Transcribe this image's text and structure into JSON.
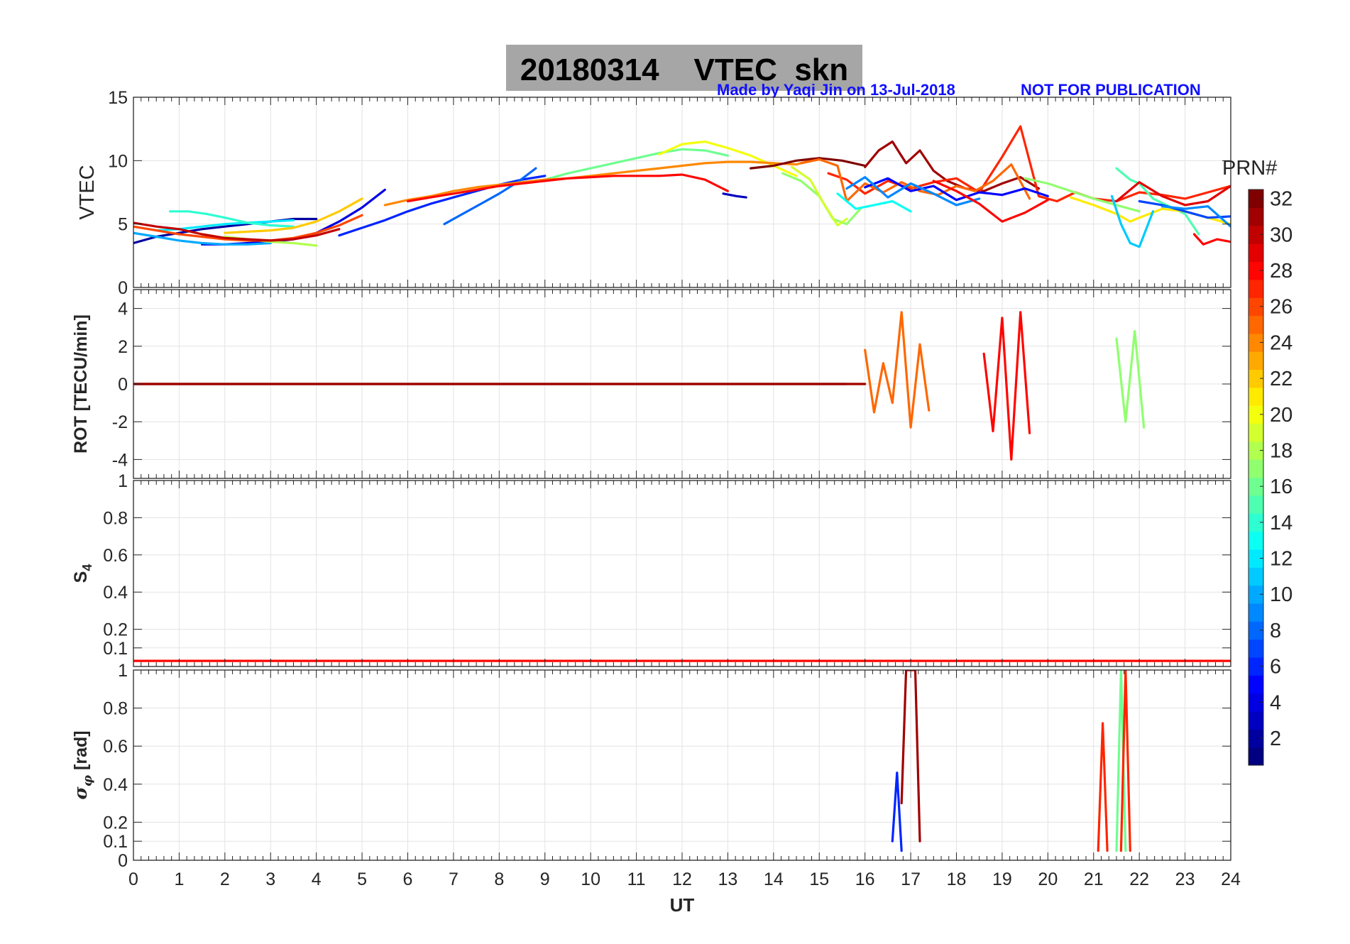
{
  "title": "20180314    VTEC  skn",
  "credit_author": "Made by Yaqi Jin on 13-Jul-2018",
  "credit_note": "NOT FOR PUBLICATION",
  "chart_data": [
    {
      "type": "line",
      "panel": "vtec",
      "ylabel": "VTEC",
      "ylim": [
        0,
        15
      ],
      "yticks": [
        "0",
        "5",
        "10",
        "15"
      ],
      "xlim": [
        0,
        24
      ],
      "grid": true,
      "series": [
        {
          "prn": 2,
          "x": [
            0,
            0.5,
            1,
            1.5,
            2,
            2.5,
            3,
            3.5,
            4
          ],
          "y": [
            3.5,
            4.0,
            4.3,
            4.6,
            4.8,
            5.0,
            5.2,
            5.4,
            5.4
          ]
        },
        {
          "prn": 4,
          "x": [
            1.5,
            2,
            2.5,
            3,
            3.5,
            4,
            4.5,
            5,
            5.5
          ],
          "y": [
            3.4,
            3.4,
            3.5,
            3.6,
            3.8,
            4.3,
            5.2,
            6.3,
            7.7
          ]
        },
        {
          "prn": 6,
          "x": [
            4.5,
            5,
            5.5,
            6,
            6.5,
            7,
            7.5,
            8,
            8.5,
            9
          ],
          "y": [
            4.1,
            4.7,
            5.3,
            6.0,
            6.6,
            7.1,
            7.6,
            8.1,
            8.5,
            8.8
          ]
        },
        {
          "prn": 8,
          "x": [
            6.8,
            7.2,
            7.6,
            8,
            8.4,
            8.8
          ],
          "y": [
            5.0,
            5.8,
            6.6,
            7.4,
            8.3,
            9.4
          ]
        },
        {
          "prn": 10,
          "x": [
            0,
            0.5,
            1,
            1.5,
            2,
            2.5,
            3
          ],
          "y": [
            4.3,
            4.0,
            3.7,
            3.5,
            3.4,
            3.4,
            3.5
          ]
        },
        {
          "prn": 12,
          "x": [
            0.5,
            1,
            1.5,
            2,
            2.5,
            3,
            3.5
          ],
          "y": [
            4.5,
            4.6,
            4.8,
            5.0,
            5.1,
            5.2,
            5.3
          ]
        },
        {
          "prn": 14,
          "x": [
            0.8,
            1.2,
            1.6,
            2,
            2.5,
            3,
            3.5
          ],
          "y": [
            6.0,
            6.0,
            5.8,
            5.5,
            5.1,
            4.9,
            4.8
          ]
        },
        {
          "prn": 16,
          "x": [
            9,
            9.5,
            10,
            10.5,
            11,
            11.5,
            12,
            12.5,
            13
          ],
          "y": [
            8.5,
            9.0,
            9.4,
            9.8,
            10.2,
            10.6,
            10.9,
            10.8,
            10.4
          ]
        },
        {
          "prn": 18,
          "x": [
            2,
            2.5,
            3,
            3.5,
            4
          ],
          "y": [
            4.0,
            3.8,
            3.6,
            3.5,
            3.3
          ]
        },
        {
          "prn": 20,
          "x": [
            11.5,
            12,
            12.5,
            13,
            13.5,
            14,
            14.5
          ],
          "y": [
            10.5,
            11.3,
            11.5,
            11.0,
            10.4,
            9.6,
            8.8
          ]
        },
        {
          "prn": 22,
          "x": [
            2,
            2.5,
            3,
            3.5,
            4,
            4.5,
            5
          ],
          "y": [
            4.3,
            4.4,
            4.5,
            4.7,
            5.2,
            6.0,
            7.0
          ]
        },
        {
          "prn": 24,
          "x": [
            5.5,
            6,
            6.5,
            7,
            7.5,
            8,
            8.5,
            9,
            9.5,
            10,
            10.5,
            11,
            11.5,
            12,
            12.5,
            13,
            13.5,
            14,
            14.5,
            15
          ],
          "y": [
            6.5,
            6.9,
            7.2,
            7.6,
            7.9,
            8.1,
            8.3,
            8.5,
            8.6,
            8.8,
            9.0,
            9.2,
            9.4,
            9.6,
            9.8,
            9.9,
            9.9,
            9.8,
            9.7,
            10.2
          ]
        },
        {
          "prn": 26,
          "x": [
            0,
            0.5,
            1,
            1.5,
            2,
            2.5,
            3,
            3.5,
            4,
            4.5,
            5
          ],
          "y": [
            4.8,
            4.5,
            4.2,
            4.0,
            3.8,
            3.7,
            3.7,
            3.9,
            4.3,
            4.9,
            5.7
          ]
        },
        {
          "prn": 28,
          "x": [
            6,
            6.5,
            7,
            7.5,
            8,
            8.5,
            9,
            9.5,
            10,
            10.5,
            11,
            11.5,
            12,
            12.5,
            13
          ],
          "y": [
            6.8,
            7.1,
            7.4,
            7.7,
            8.0,
            8.2,
            8.4,
            8.6,
            8.7,
            8.8,
            8.8,
            8.8,
            8.9,
            8.5,
            7.6
          ]
        },
        {
          "prn": 30,
          "x": [
            0,
            0.5,
            1,
            1.5,
            2,
            2.5,
            3,
            3.5,
            4,
            4.5
          ],
          "y": [
            5.1,
            4.8,
            4.6,
            4.2,
            3.9,
            3.8,
            3.7,
            3.8,
            4.1,
            4.6
          ]
        },
        {
          "prn": 32,
          "x": [
            13.5,
            14,
            14.5,
            15,
            15.5,
            16
          ],
          "y": [
            9.4,
            9.6,
            10.0,
            10.2,
            10.0,
            9.6
          ]
        },
        {
          "prn": 31,
          "x": [
            16,
            16.3,
            16.6,
            16.9,
            17.2,
            17.5,
            17.8,
            18.2,
            18.6,
            19,
            19.4,
            19.8
          ],
          "y": [
            9.5,
            10.8,
            11.5,
            9.8,
            10.8,
            9.2,
            8.4,
            7.8,
            7.6,
            8.2,
            8.7,
            7.8
          ]
        },
        {
          "prn": 27,
          "x": [
            15.2,
            15.6,
            16,
            16.5,
            17,
            17.5,
            18,
            18.5,
            19,
            19.4,
            19.8,
            20.2,
            20.6,
            21,
            21.5,
            22,
            22.5,
            23,
            23.5,
            24
          ],
          "y": [
            9.0,
            8.5,
            7.4,
            8.4,
            7.8,
            8.3,
            8.6,
            7.5,
            10.3,
            12.7,
            7.2,
            6.8,
            7.5,
            7.0,
            6.8,
            7.5,
            7.3,
            7.0,
            7.5,
            8.0
          ]
        },
        {
          "prn": 25,
          "x": [
            14.6,
            15,
            15.4,
            15.6,
            16,
            16.4,
            16.8,
            17.2,
            17.6,
            18,
            18.4,
            18.8,
            19.2,
            19.6
          ],
          "y": [
            9.8,
            10.1,
            9.6,
            6.8,
            8.2,
            7.5,
            8.3,
            7.6,
            7.3,
            8.0,
            7.6,
            8.4,
            9.7,
            7.0
          ]
        },
        {
          "prn": 17,
          "x": [
            14.2,
            14.6,
            15,
            15.3,
            15.6,
            15.9
          ],
          "y": [
            9.0,
            8.4,
            7.2,
            5.4,
            5.0,
            6.2
          ]
        },
        {
          "prn": 19,
          "x": [
            14.4,
            14.8,
            15.1,
            15.4,
            15.6
          ],
          "y": [
            9.5,
            8.5,
            6.6,
            4.9,
            5.4
          ]
        },
        {
          "prn": 13,
          "x": [
            15.4,
            15.8,
            16.2,
            16.6,
            17
          ],
          "y": [
            7.4,
            6.2,
            6.5,
            6.8,
            6.0
          ]
        },
        {
          "prn": 5,
          "x": [
            16,
            16.5,
            17,
            17.5,
            18,
            18.5,
            19,
            19.5,
            20
          ],
          "y": [
            7.9,
            8.6,
            7.6,
            8.0,
            6.9,
            7.5,
            7.3,
            7.8,
            7.2
          ]
        },
        {
          "prn": 9,
          "x": [
            15.6,
            16,
            16.5,
            17,
            17.5,
            18,
            18.5
          ],
          "y": [
            7.8,
            8.7,
            7.1,
            8.2,
            7.4,
            6.5,
            7.0
          ]
        },
        {
          "prn": 17,
          "x": [
            19.5,
            20,
            20.5,
            21,
            21.5,
            22
          ],
          "y": [
            8.6,
            8.2,
            7.6,
            7.0,
            6.5,
            6.0
          ]
        },
        {
          "prn": 15,
          "x": [
            21.5,
            21.8,
            22,
            22.3,
            22.6,
            23,
            23.3
          ],
          "y": [
            9.4,
            8.5,
            8.2,
            7.0,
            6.5,
            5.8,
            4.2
          ]
        },
        {
          "prn": 21,
          "x": [
            20.5,
            21,
            21.5,
            21.8,
            22,
            22.5,
            23,
            23.5,
            24
          ],
          "y": [
            7.1,
            6.5,
            5.8,
            5.2,
            5.5,
            6.2,
            6.0,
            5.5,
            5.0
          ]
        },
        {
          "prn": 11,
          "x": [
            21.4,
            21.6,
            21.8,
            22,
            22.3
          ],
          "y": [
            7.2,
            5.0,
            3.5,
            3.2,
            6.0
          ]
        },
        {
          "prn": 7,
          "x": [
            22,
            22.5,
            23,
            23.5,
            24
          ],
          "y": [
            6.8,
            6.5,
            6.0,
            5.5,
            5.6
          ]
        },
        {
          "prn": 9,
          "x": [
            22.5,
            23,
            23.5,
            24
          ],
          "y": [
            6.4,
            6.2,
            6.4,
            4.8
          ]
        },
        {
          "prn": 29,
          "x": [
            21.5,
            22,
            22.5,
            23,
            23.5,
            24
          ],
          "y": [
            6.8,
            8.3,
            7.2,
            6.5,
            6.8,
            8.0
          ]
        },
        {
          "prn": 28,
          "x": [
            23.2,
            23.4,
            23.7,
            24
          ],
          "y": [
            4.2,
            3.4,
            3.8,
            3.6
          ]
        },
        {
          "prn": 28,
          "x": [
            17.5,
            18,
            18.5,
            19,
            19.5,
            20
          ],
          "y": [
            8.4,
            7.6,
            6.6,
            5.2,
            5.9,
            6.9
          ]
        },
        {
          "prn": 3,
          "x": [
            12.9,
            13.2,
            13.4
          ],
          "y": [
            7.4,
            7.2,
            7.1
          ]
        }
      ]
    },
    {
      "type": "line",
      "panel": "rot",
      "ylabel": "ROT [TECU/min]",
      "ylim": [
        -5,
        5
      ],
      "yticks": [
        "-4",
        "-2",
        "0",
        "2",
        "4"
      ],
      "xlim": [
        0,
        24
      ],
      "grid": true,
      "series": [
        {
          "prn": 4,
          "x": [
            0,
            15.6
          ],
          "y": [
            0,
            0
          ]
        },
        {
          "prn": 22,
          "x": [
            0,
            16
          ],
          "y": [
            0,
            0
          ]
        },
        {
          "prn": 31,
          "x": [
            0,
            16
          ],
          "y": [
            0,
            0
          ]
        },
        {
          "prn": 25,
          "x": [
            16,
            16.2,
            16.4,
            16.6,
            16.8,
            17,
            17.2,
            17.4
          ],
          "y": [
            1.8,
            -1.5,
            1.1,
            -1.0,
            3.8,
            -2.3,
            2.1,
            -1.4
          ]
        },
        {
          "prn": 28,
          "x": [
            18.6,
            18.8,
            19,
            19.2,
            19.4,
            19.6
          ],
          "y": [
            1.6,
            -2.5,
            3.5,
            -4.0,
            3.8,
            -2.6
          ]
        },
        {
          "prn": 17,
          "x": [
            21.5,
            21.7,
            21.9,
            22.1
          ],
          "y": [
            2.4,
            -2.0,
            2.8,
            -2.3
          ]
        }
      ]
    },
    {
      "type": "line",
      "panel": "s4",
      "ylabel": "S4",
      "ylim": [
        0,
        1
      ],
      "yticks": [
        "0.1",
        "0.2",
        "0.4",
        "0.6",
        "0.8",
        "1"
      ],
      "xlim": [
        0,
        24
      ],
      "grid": true,
      "series": [
        {
          "prn": 28,
          "x": [
            0,
            24
          ],
          "y": [
            0.03,
            0.03
          ]
        }
      ]
    },
    {
      "type": "line",
      "panel": "sigma_phi",
      "ylabel": "σφ [rad]",
      "ylim": [
        0,
        1
      ],
      "yticks": [
        "0",
        "0.1",
        "0.2",
        "0.4",
        "0.6",
        "0.8",
        "1"
      ],
      "xlim": [
        0,
        24
      ],
      "xticks": [
        "0",
        "1",
        "2",
        "3",
        "4",
        "5",
        "6",
        "7",
        "8",
        "9",
        "10",
        "11",
        "12",
        "13",
        "14",
        "15",
        "16",
        "17",
        "18",
        "19",
        "20",
        "21",
        "22",
        "23",
        "24"
      ],
      "xlabel": "UT",
      "grid": true,
      "series": [
        {
          "prn": 31,
          "x": [
            16.8,
            16.9,
            17,
            17.1,
            17.2
          ],
          "y": [
            0.3,
            1,
            1,
            1,
            0.1
          ]
        },
        {
          "prn": 6,
          "x": [
            16.6,
            16.7,
            16.8
          ],
          "y": [
            0.1,
            0.46,
            0.05
          ]
        },
        {
          "prn": 27,
          "x": [
            21.1,
            21.2,
            21.3
          ],
          "y": [
            0.05,
            0.72,
            0.05
          ]
        },
        {
          "prn": 16,
          "x": [
            21.5,
            21.6,
            21.7
          ],
          "y": [
            0.05,
            1,
            0.05
          ]
        },
        {
          "prn": 27,
          "x": [
            21.6,
            21.7,
            21.8
          ],
          "y": [
            0.05,
            1,
            0.05
          ]
        }
      ]
    }
  ],
  "colorbar": {
    "label": "PRN#",
    "range": [
      1,
      32
    ],
    "ticks": [
      "2",
      "4",
      "6",
      "8",
      "10",
      "12",
      "14",
      "16",
      "18",
      "20",
      "22",
      "24",
      "26",
      "28",
      "30",
      "32"
    ],
    "colormap": "jet"
  }
}
